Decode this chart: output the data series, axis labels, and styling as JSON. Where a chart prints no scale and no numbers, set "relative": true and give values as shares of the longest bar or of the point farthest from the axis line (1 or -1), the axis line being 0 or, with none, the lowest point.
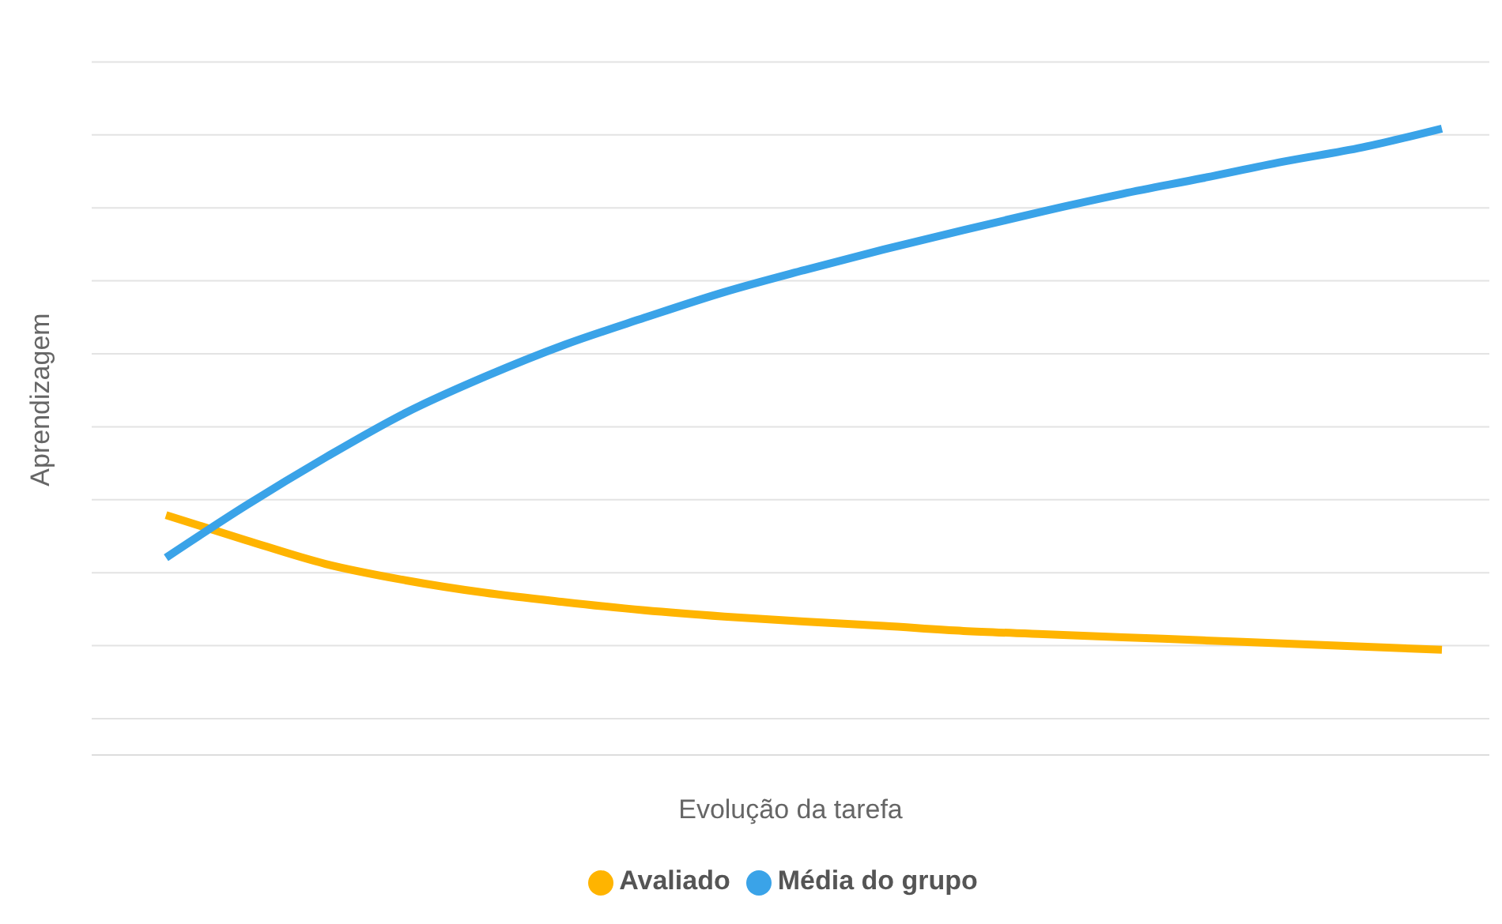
{
  "chart_data": {
    "type": "line",
    "relative": true,
    "xlabel": "Evolução da tarefa",
    "ylabel": "Aprendizagem",
    "grid": "y",
    "legend": "bottom",
    "marker": "none",
    "line_style": "solid",
    "categories": [
      null,
      null,
      null,
      null,
      null,
      null,
      null,
      null,
      null,
      null,
      null,
      null,
      null,
      null,
      null,
      null,
      null
    ],
    "series": [
      {
        "name": "Avaliado",
        "color": "#ffb400",
        "values": [
          0.383,
          0.343,
          0.305,
          0.279,
          0.259,
          0.244,
          0.231,
          0.221,
          0.213,
          0.206,
          0.198,
          0.193,
          0.188,
          0.183,
          0.178,
          0.173,
          0.168
        ]
      },
      {
        "name": "Média do grupo",
        "color": "#3aa3e8",
        "values": [
          0.315,
          0.398,
          0.475,
          0.546,
          0.604,
          0.655,
          0.698,
          0.739,
          0.774,
          0.807,
          0.838,
          0.868,
          0.896,
          0.921,
          0.947,
          0.97,
          1
        ]
      }
    ]
  }
}
